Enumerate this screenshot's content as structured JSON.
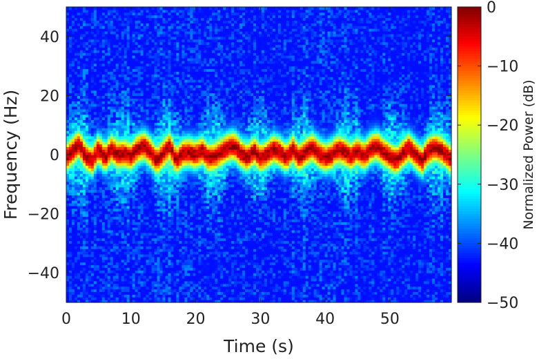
{
  "chart_data": {
    "type": "heatmap",
    "title": "",
    "xlabel": "Time (s)",
    "ylabel": "Frequency (Hz)",
    "colorbar_label": "Normalized Power (dB)",
    "xlim": [
      0,
      59.5
    ],
    "ylim": [
      -50,
      50
    ],
    "clim": [
      -50,
      0
    ],
    "colormap": "jet",
    "x_ticks": [
      0,
      10,
      20,
      30,
      40,
      50
    ],
    "x_tick_labels": [
      "0",
      "10",
      "20",
      "30",
      "40",
      "50"
    ],
    "y_ticks": [
      40,
      20,
      0,
      -20,
      -40
    ],
    "y_tick_labels": [
      "40",
      "20",
      "0",
      "−20",
      "−40"
    ],
    "colorbar_ticks": [
      0,
      -10,
      -20,
      -30,
      -40,
      -50
    ],
    "colorbar_tick_labels": [
      "0",
      "−10",
      "−20",
      "−30",
      "−40",
      "−50"
    ],
    "background_level_db": -43,
    "ridge_peak_level_db": -2,
    "ridge_halfwidth_hz": 3.5,
    "ridge_center_hz": {
      "t": [
        0,
        0.8,
        2,
        3,
        4,
        5,
        6,
        7,
        8,
        9,
        10,
        11,
        12,
        13,
        14,
        15,
        16,
        17,
        18,
        19,
        20,
        21,
        22,
        23,
        24,
        25,
        26,
        27,
        28,
        29,
        30,
        31,
        32,
        33,
        34,
        35,
        36,
        37,
        38,
        39,
        40,
        41,
        42,
        43,
        44,
        45,
        46,
        47,
        48,
        49,
        50,
        51,
        52,
        53,
        54,
        55,
        56,
        57,
        58,
        59.5
      ],
      "f": [
        -1,
        1,
        3.5,
        -0.5,
        -2,
        2,
        -1,
        2,
        0,
        0.5,
        -0.5,
        2,
        3,
        1,
        -2,
        0.5,
        3,
        -2,
        0.5,
        1,
        0,
        1.5,
        -1,
        -0.5,
        1,
        2.5,
        3,
        0.5,
        -1,
        1.5,
        -1,
        0,
        2,
        1,
        -1,
        2,
        -1,
        1,
        2.5,
        0.5,
        -1,
        0,
        2,
        1,
        -0.5,
        1.5,
        -0.5,
        2,
        3,
        1,
        -0.5,
        -2,
        0.5,
        2.5,
        0,
        -2,
        1.5,
        2.5,
        1.5,
        -1.5
      ]
    }
  }
}
